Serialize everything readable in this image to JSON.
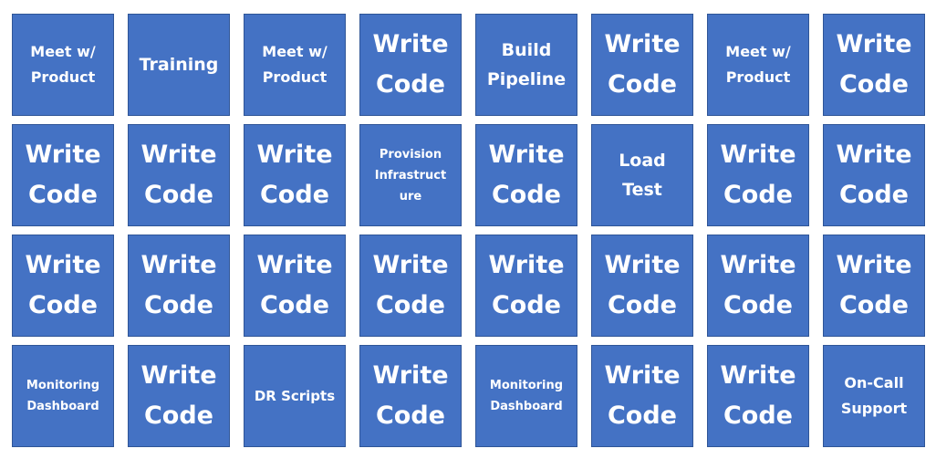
{
  "colors": {
    "tile_fill": "#4472c4",
    "tile_border": "#2f5597",
    "text": "#ffffff",
    "background": "#ffffff"
  },
  "rows": [
    [
      "Meet w/\nProduct",
      "Training",
      "Meet w/\nProduct",
      "Write\nCode",
      "Build\nPipeline",
      "Write\nCode",
      "Meet w/\nProduct",
      "Write\nCode"
    ],
    [
      "Write\nCode",
      "Write\nCode",
      "Write\nCode",
      "Provision\nInfrastruct\nure",
      "Write\nCode",
      "Load\nTest",
      "Write\nCode",
      "Write\nCode"
    ],
    [
      "Write\nCode",
      "Write\nCode",
      "Write\nCode",
      "Write\nCode",
      "Write\nCode",
      "Write\nCode",
      "Write\nCode",
      "Write\nCode"
    ],
    [
      "Monitoring\nDashboard",
      "Write\nCode",
      "DR Scripts",
      "Write\nCode",
      "Monitoring\nDashboard",
      "Write\nCode",
      "Write\nCode",
      "On-Call\nSupport"
    ]
  ]
}
